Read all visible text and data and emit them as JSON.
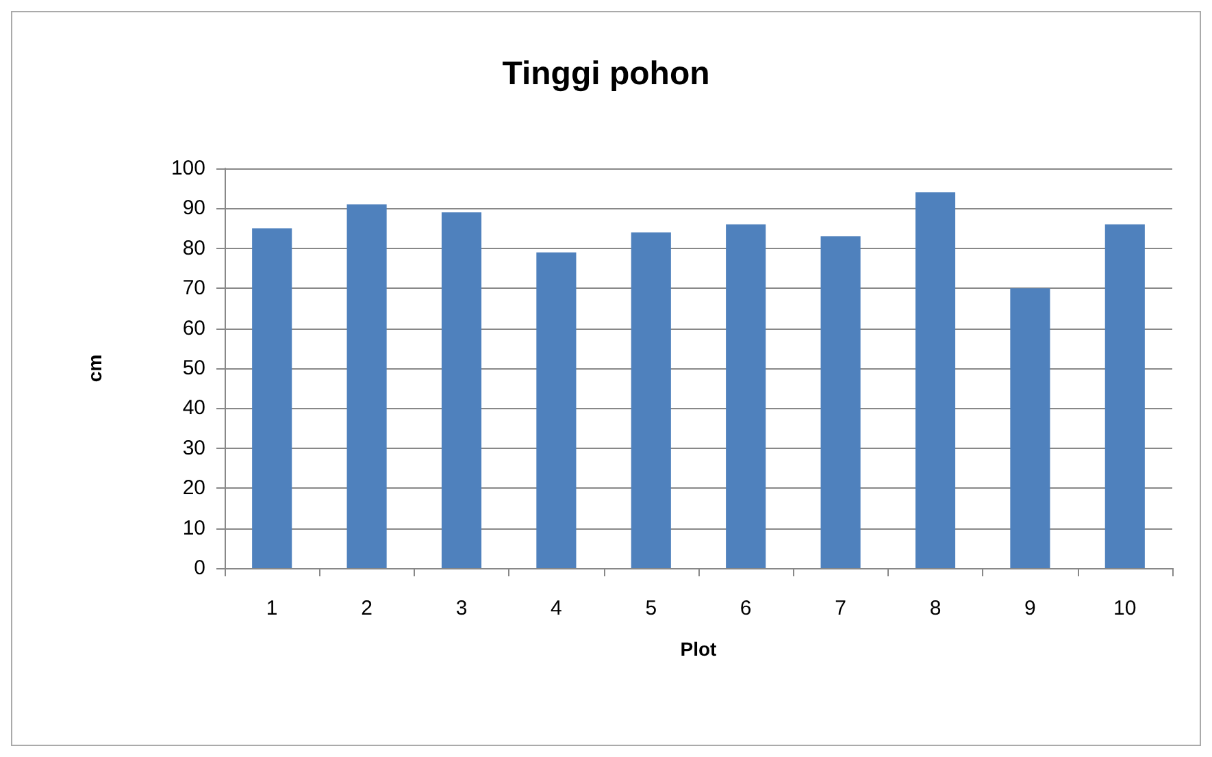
{
  "chart_data": {
    "type": "bar",
    "title": "Tinggi pohon",
    "xlabel": "Plot",
    "ylabel": "cm",
    "categories": [
      "1",
      "2",
      "3",
      "4",
      "5",
      "6",
      "7",
      "8",
      "9",
      "10"
    ],
    "values": [
      85,
      91,
      89,
      79,
      84,
      86,
      83,
      94,
      70,
      86
    ],
    "color": "#4f81bd",
    "ylim": [
      0,
      100
    ],
    "yticks": [
      0,
      10,
      20,
      30,
      40,
      50,
      60,
      70,
      80,
      90,
      100
    ],
    "grid": "y"
  }
}
